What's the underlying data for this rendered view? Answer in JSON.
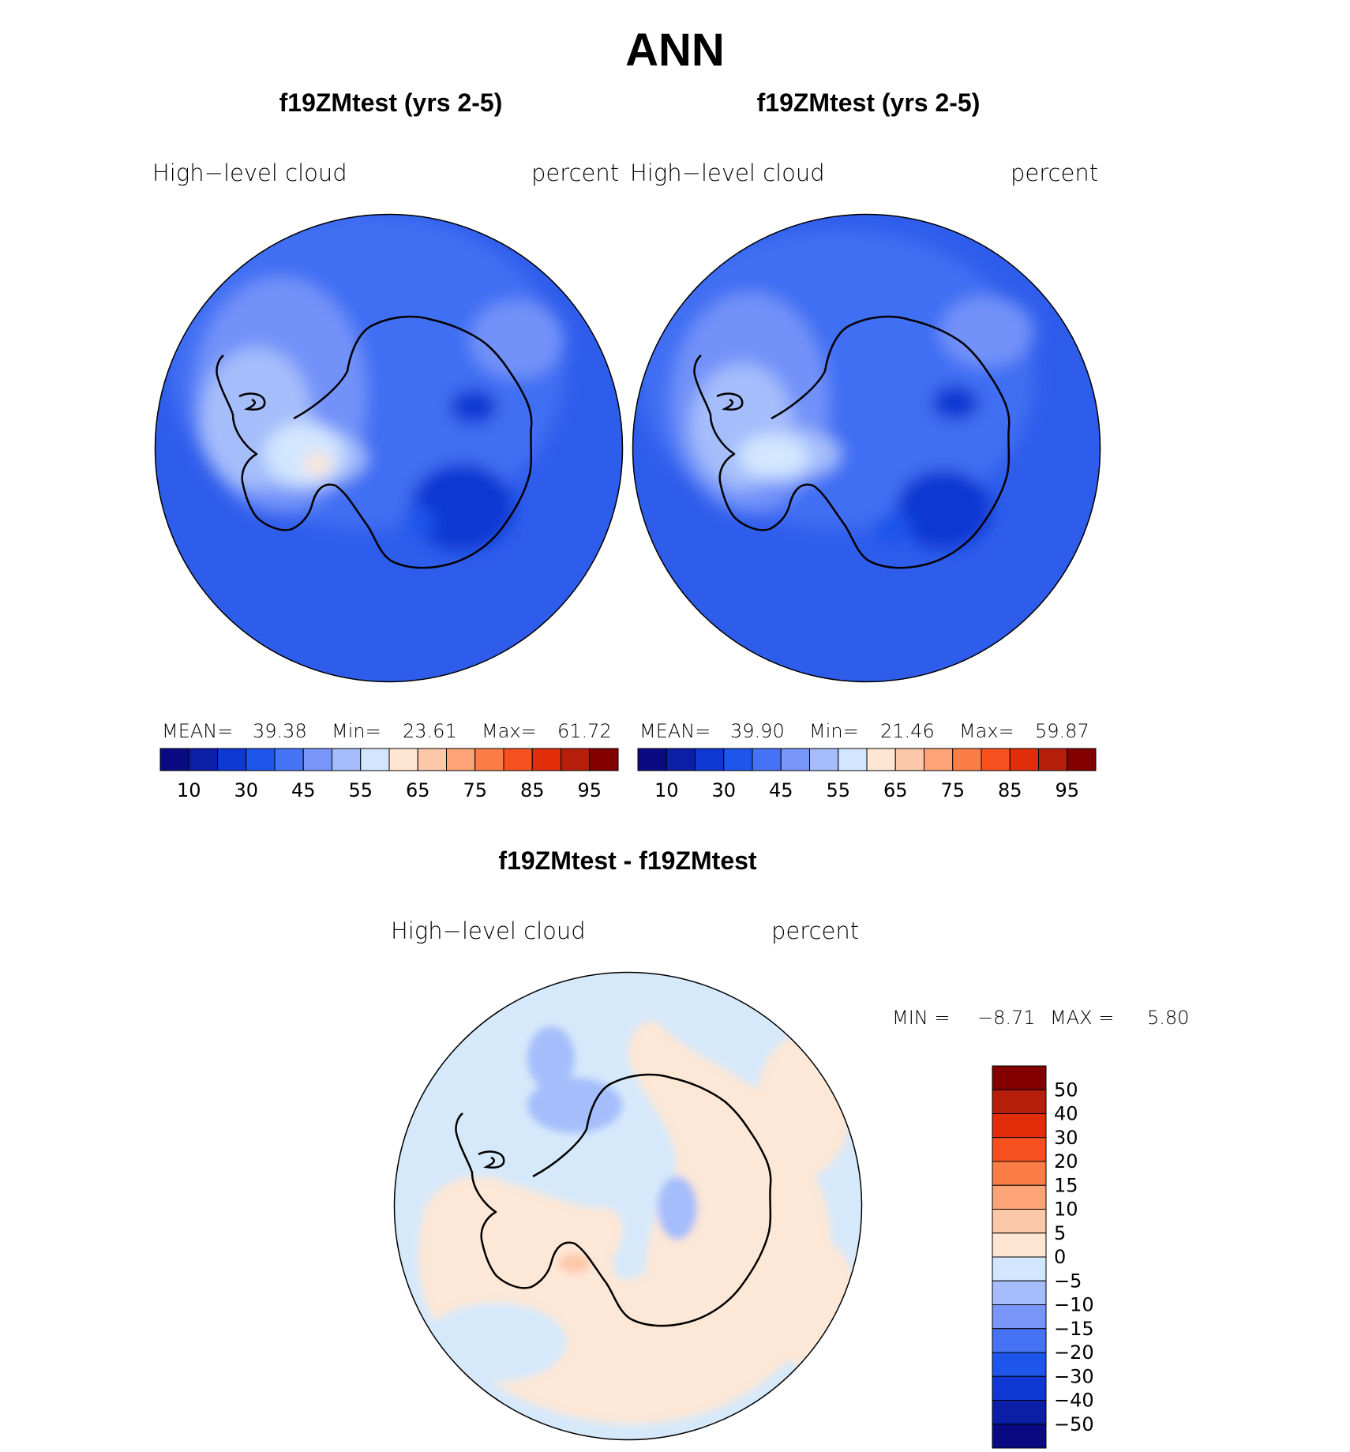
{
  "main_title": "ANN",
  "panels": [
    {
      "title": "f19ZMtest (yrs 2-5)",
      "variable": "High−level  cloud",
      "units": "percent",
      "stats": {
        "mean_label": "MEAN=",
        "mean": "39.38",
        "min_label": "Min=",
        "min": "23.61",
        "max_label": "Max=",
        "max": "61.72"
      }
    },
    {
      "title": "f19ZMtest (yrs 2-5)",
      "variable": "High−level  cloud",
      "units": "percent",
      "stats": {
        "mean_label": "MEAN=",
        "mean": "39.90",
        "min_label": "Min=",
        "min": "21.46",
        "max_label": "Max=",
        "max": "59.87"
      }
    },
    {
      "title": "f19ZMtest - f19ZMtest",
      "variable": "High−level  cloud",
      "units": "percent",
      "stats": {
        "min_label": "MIN =",
        "min": "−8.71",
        "max_label": "MAX =",
        "max": "5.80"
      }
    }
  ],
  "chart_data": [
    {
      "type": "heatmap",
      "title": "f19ZMtest (yrs 2-5)",
      "projection": "south-polar stereographic",
      "variable": "High−level  cloud",
      "units": "percent",
      "mean": 39.38,
      "min": 23.61,
      "max": 61.72,
      "colorbar": {
        "orientation": "horizontal",
        "tick_labels": [
          "10",
          "30",
          "45",
          "55",
          "65",
          "75",
          "85",
          "95"
        ],
        "colors": [
          "#0a0a82",
          "#0a1ea6",
          "#0f37d2",
          "#1e55eb",
          "#4673f5",
          "#7896fa",
          "#a5bdfb",
          "#d2e6ff",
          "#ffe6d2",
          "#fdc7aa",
          "#fca378",
          "#fa7d46",
          "#f5501e",
          "#e12d0a",
          "#b41e0a",
          "#820000"
        ]
      }
    },
    {
      "type": "heatmap",
      "title": "f19ZMtest (yrs 2-5)",
      "projection": "south-polar stereographic",
      "variable": "High−level  cloud",
      "units": "percent",
      "mean": 39.9,
      "min": 21.46,
      "max": 59.87,
      "colorbar": {
        "orientation": "horizontal",
        "tick_labels": [
          "10",
          "30",
          "45",
          "55",
          "65",
          "75",
          "85",
          "95"
        ],
        "colors": [
          "#0a0a82",
          "#0a1ea6",
          "#0f37d2",
          "#1e55eb",
          "#4673f5",
          "#7896fa",
          "#a5bdfb",
          "#d2e6ff",
          "#ffe6d2",
          "#fdc7aa",
          "#fca378",
          "#fa7d46",
          "#f5501e",
          "#e12d0a",
          "#b41e0a",
          "#820000"
        ]
      }
    },
    {
      "type": "heatmap",
      "title": "f19ZMtest - f19ZMtest",
      "projection": "south-polar stereographic",
      "variable": "High−level  cloud",
      "units": "percent",
      "min": -8.71,
      "max": 5.8,
      "colorbar": {
        "orientation": "vertical",
        "tick_labels": [
          "50",
          "40",
          "30",
          "20",
          "15",
          "10",
          "5",
          "0",
          "−5",
          "−10",
          "−15",
          "−20",
          "−30",
          "−40",
          "−50"
        ],
        "colors": [
          "#820000",
          "#b41e0a",
          "#e12d0a",
          "#f5501e",
          "#fa7d46",
          "#fca378",
          "#fdc7aa",
          "#ffe6d2",
          "#d2e6ff",
          "#a5bdfb",
          "#7896fa",
          "#4673f5",
          "#1e55eb",
          "#0f37d2",
          "#0a1ea6",
          "#0a0a82"
        ]
      }
    }
  ],
  "colors": {
    "map_base_abs": "#2f5deb",
    "map_base_diff": "#d6e9fb",
    "diff_positive": "#fde7d6",
    "coastline": "#000000"
  }
}
